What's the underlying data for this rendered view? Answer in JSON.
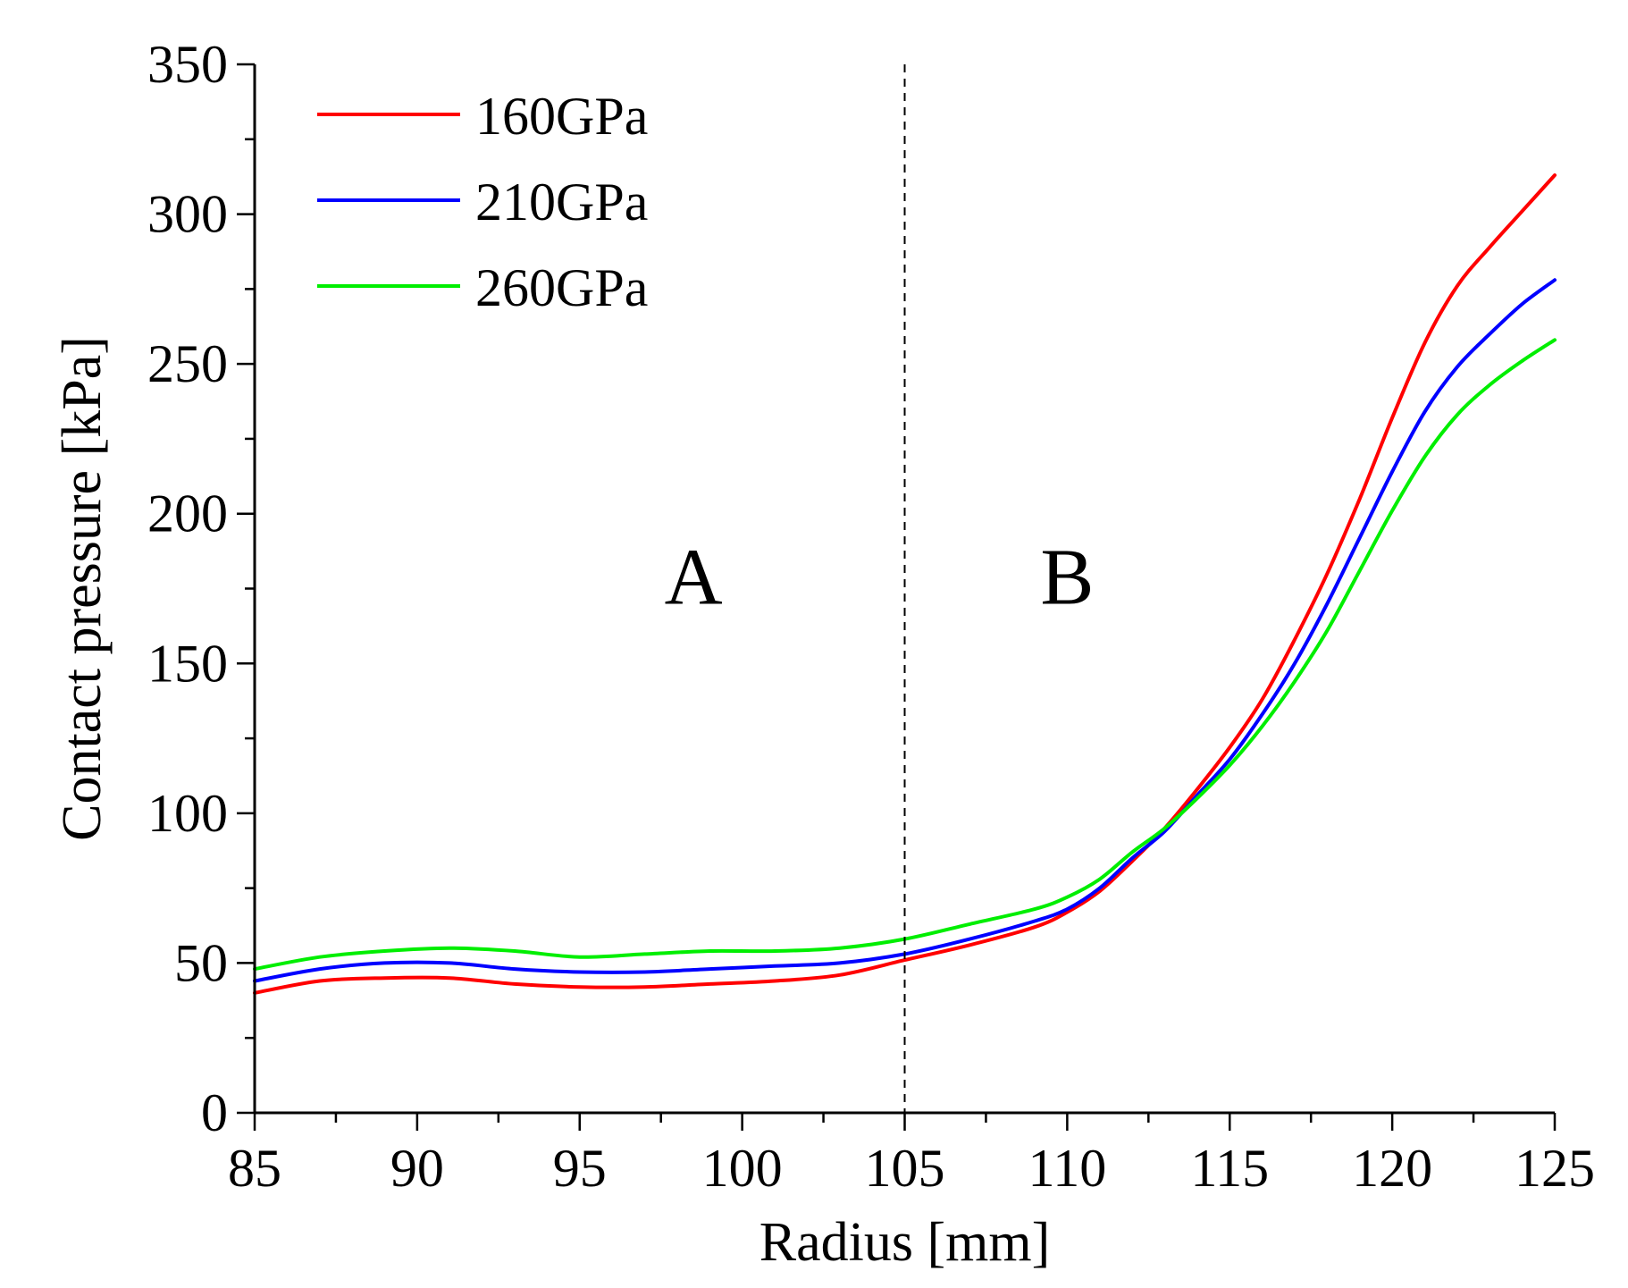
{
  "chart_data": {
    "type": "line",
    "title": "",
    "xlabel": "Radius [mm]",
    "ylabel": "Contact pressure [kPa]",
    "xlim": [
      85,
      125
    ],
    "ylim": [
      0,
      350
    ],
    "xticks": [
      85,
      90,
      95,
      100,
      105,
      110,
      115,
      120,
      125
    ],
    "yticks": [
      0,
      50,
      100,
      150,
      200,
      250,
      300,
      350
    ],
    "grid": false,
    "legend_position": "top-left",
    "divider": {
      "x": 105,
      "style": "dashed"
    },
    "annotations": [
      {
        "text": "A",
        "x": 98.5,
        "y": 170
      },
      {
        "text": "B",
        "x": 110,
        "y": 170
      }
    ],
    "x": [
      85,
      87,
      89,
      91,
      93,
      95,
      97,
      99,
      101,
      103,
      105,
      107,
      109,
      110,
      111,
      112,
      113,
      114,
      115,
      116,
      117,
      118,
      119,
      120,
      121,
      122,
      123,
      124,
      125
    ],
    "series": [
      {
        "name": "160GPa",
        "color": "#ff0000",
        "values": [
          40,
          44,
          45,
          45,
          43,
          42,
          42,
          43,
          44,
          46,
          51,
          56,
          62,
          67,
          74,
          84,
          95,
          108,
          122,
          138,
          158,
          180,
          205,
          232,
          257,
          276,
          289,
          301,
          313
        ]
      },
      {
        "name": "210GPa",
        "color": "#0000ff",
        "values": [
          44,
          48,
          50,
          50,
          48,
          47,
          47,
          48,
          49,
          50,
          53,
          58,
          64,
          68,
          75,
          85,
          94,
          106,
          118,
          133,
          150,
          170,
          192,
          214,
          234,
          249,
          260,
          270,
          278
        ]
      },
      {
        "name": "260GPa",
        "color": "#00ee00",
        "values": [
          48,
          52,
          54,
          55,
          54,
          52,
          53,
          54,
          54,
          55,
          58,
          63,
          68,
          72,
          78,
          87,
          95,
          105,
          116,
          129,
          144,
          161,
          181,
          201,
          219,
          233,
          243,
          251,
          258
        ]
      }
    ]
  }
}
